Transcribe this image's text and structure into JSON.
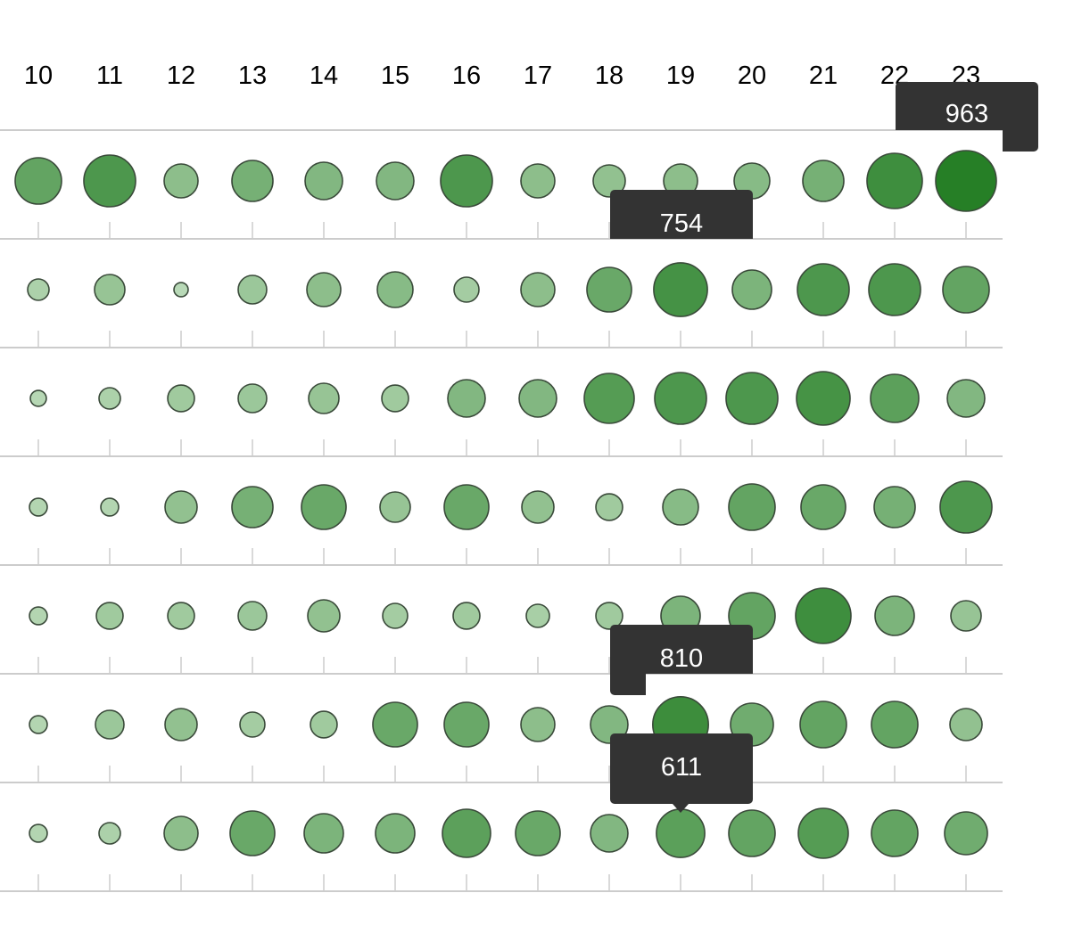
{
  "chart_data": {
    "type": "punchcard",
    "title": "",
    "x": [
      "10",
      "11",
      "12",
      "13",
      "14",
      "15",
      "16",
      "17",
      "18",
      "19",
      "20",
      "21",
      "22",
      "23"
    ],
    "rows": [
      [
        563,
        701,
        301,
        441,
        367,
        367,
        701,
        301,
        270,
        301,
        333,
        441,
        801,
        963
      ],
      [
        120,
        241,
        53,
        213,
        301,
        333,
        163,
        301,
        521,
        754,
        403,
        701,
        701,
        563
      ],
      [
        67,
        120,
        187,
        213,
        241,
        187,
        367,
        367,
        653,
        701,
        701,
        750,
        607,
        367
      ],
      [
        83,
        83,
        270,
        441,
        521,
        241,
        521,
        270,
        187,
        333,
        563,
        521,
        441,
        701
      ],
      [
        83,
        187,
        187,
        213,
        270,
        163,
        187,
        141,
        187,
        403,
        563,
        801,
        403,
        241
      ],
      [
        83,
        213,
        270,
        163,
        187,
        521,
        521,
        301,
        367,
        810,
        480,
        563,
        563,
        270
      ],
      [
        83,
        120,
        301,
        521,
        403,
        403,
        607,
        521,
        367,
        611,
        563,
        653,
        563,
        480
      ]
    ],
    "max_value": 963,
    "color_low": "#c4e0c2",
    "color_high": "#267f26",
    "tooltips": [
      {
        "row": 0,
        "col": 13,
        "label": "963"
      },
      {
        "row": 1,
        "col": 9,
        "label": "754"
      },
      {
        "row": 5,
        "col": 9,
        "label": "810"
      },
      {
        "row": 6,
        "col": 9,
        "label": "611"
      }
    ]
  }
}
